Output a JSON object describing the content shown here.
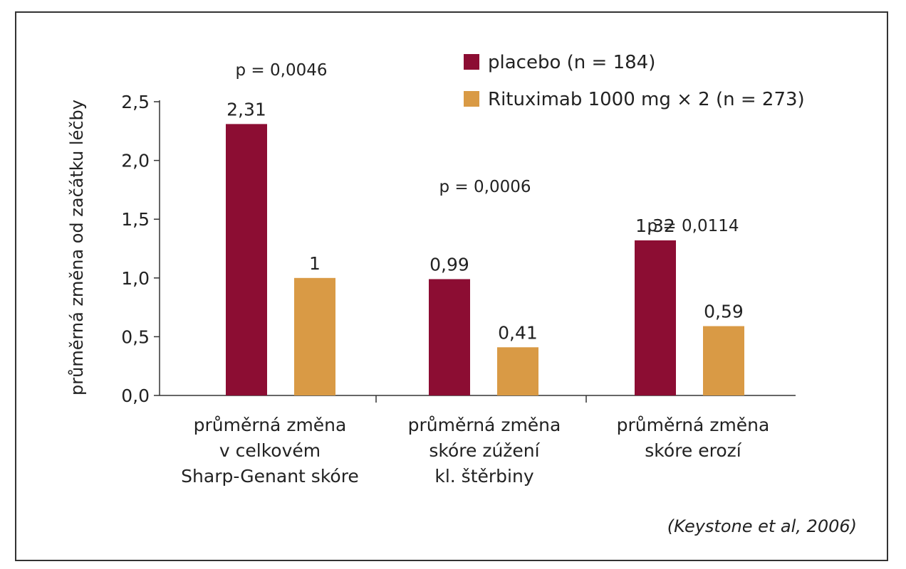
{
  "chart_data": {
    "type": "bar",
    "ylabel": "průměrná změna od začátku léčby",
    "ylim": [
      0,
      2.5
    ],
    "yticks": [
      "0,0",
      "0,5",
      "1,0",
      "1,5",
      "2,0",
      "2,5"
    ],
    "categories": [
      [
        "průměrná změna",
        "v celkovém",
        "Sharp-Genant skóre"
      ],
      [
        "průměrná změna",
        "skóre zúžení",
        "kl. štěrbiny"
      ],
      [
        "průměrná změna",
        "skóre erozí"
      ]
    ],
    "series": [
      {
        "name": "placebo (n = 184)",
        "color": "#8c0d33",
        "values": [
          2.31,
          0.99,
          1.32
        ],
        "labels": [
          "2,31",
          "0,99",
          "1,32"
        ]
      },
      {
        "name": "Rituximab 1000 mg × 2 (n = 273)",
        "color": "#d99a45",
        "values": [
          1.0,
          0.41,
          0.59
        ],
        "labels": [
          "1",
          "0,41",
          "0,59"
        ]
      }
    ],
    "p_values": [
      "p = 0,0046",
      "p = 0,0006",
      "p = 0,0114"
    ],
    "legend_position": "top-right",
    "grid": false,
    "source": "(Keystone et al, 2006)"
  }
}
